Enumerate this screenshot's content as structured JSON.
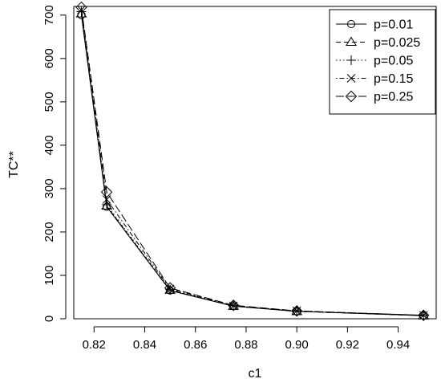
{
  "chart_data": {
    "type": "line",
    "title": "",
    "xlabel": "c1",
    "ylabel": "TC**",
    "xlim": [
      0.812,
      0.955
    ],
    "ylim": [
      0,
      720
    ],
    "x_ticks": [
      "0.82",
      "0.84",
      "0.86",
      "0.88",
      "0.90",
      "0.92",
      "0.94"
    ],
    "y_ticks": [
      "0",
      "100",
      "200",
      "300",
      "400",
      "500",
      "600",
      "700"
    ],
    "x": [
      0.815,
      0.825,
      0.85,
      0.875,
      0.9,
      0.95
    ],
    "legend_position": "top-right",
    "grid": false,
    "series": [
      {
        "name": "p=0.01",
        "marker": "circle",
        "dash": "solid",
        "values": [
          700,
          258,
          65,
          29,
          17,
          7
        ]
      },
      {
        "name": "p=0.025",
        "marker": "triangle",
        "dash": "dashed",
        "values": [
          703,
          260,
          66,
          29,
          17,
          7
        ]
      },
      {
        "name": "p=0.05",
        "marker": "plus",
        "dash": "dotted",
        "values": [
          708,
          263,
          67,
          30,
          18,
          7
        ]
      },
      {
        "name": "p=0.15",
        "marker": "cross",
        "dash": "dotdash",
        "values": [
          712,
          275,
          69,
          30,
          18,
          8
        ]
      },
      {
        "name": "p=0.25",
        "marker": "diamond",
        "dash": "longdash",
        "values": [
          718,
          292,
          71,
          31,
          18,
          8
        ]
      }
    ]
  }
}
